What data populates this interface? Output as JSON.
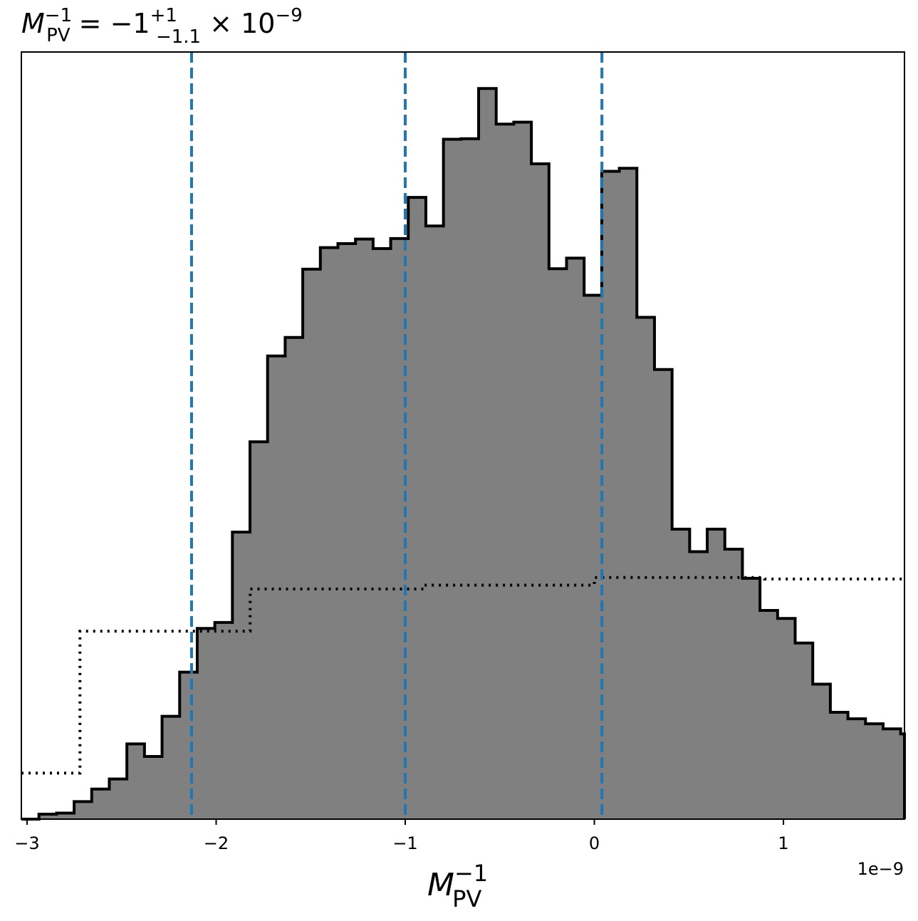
{
  "chart_data": {
    "type": "histogram",
    "title": {
      "lhs_base": "M",
      "lhs_sup": "−1",
      "lhs_sub": "PV",
      "equals": " = −1",
      "err_plus": "+1",
      "err_minus": "−1.1",
      "times": " × 10",
      "exp": "−9"
    },
    "xlabel": {
      "base": "M",
      "sup": "−1",
      "sub": "PV"
    },
    "x_offset_label": "1e−9",
    "x_scale": 1e-09,
    "xlim": [
      -3.03,
      1.64
    ],
    "ylim": [
      0,
      1.0
    ],
    "x_ticks": [
      {
        "value": -3,
        "label": "−3"
      },
      {
        "value": -2,
        "label": "−2"
      },
      {
        "value": -1,
        "label": "−1"
      },
      {
        "value": 0,
        "label": "0"
      },
      {
        "value": 1,
        "label": "1"
      }
    ],
    "histogram": {
      "bin_start": -3.03,
      "bin_width": 0.093,
      "counts": [
        0.0,
        0.01,
        0.012,
        0.035,
        0.06,
        0.08,
        0.15,
        0.125,
        0.205,
        0.293,
        0.38,
        0.392,
        0.572,
        0.752,
        0.923,
        0.96,
        1.096,
        1.139,
        1.147,
        1.156,
        1.137,
        1.157,
        1.239,
        1.182,
        1.355,
        1.356,
        1.456,
        1.385,
        1.389,
        1.306,
        1.097,
        1.118,
        1.044,
        1.291,
        1.297,
        1.0,
        0.896,
        0.578,
        0.533,
        0.578,
        0.538,
        0.48,
        0.416,
        0.4,
        0.351,
        0.269,
        0.213,
        0.2,
        0.19,
        0.18,
        0.17
      ]
    },
    "prior_dotted": {
      "x": [
        -3.03,
        -2.72,
        -2.72,
        -1.82,
        -1.82,
        -0.9,
        -0.9,
        0.0,
        0.0,
        0.9,
        0.9,
        1.64
      ],
      "y": [
        0.06,
        0.06,
        0.245,
        0.245,
        0.3,
        0.3,
        0.305,
        0.305,
        0.315,
        0.315,
        0.313,
        0.313
      ]
    },
    "quantile_lines": [
      -2.13,
      -1.0,
      0.04
    ],
    "colors": {
      "fill": "#808080",
      "edge": "#000000",
      "quantile": "#1f77b4",
      "prior": "#000000"
    }
  }
}
